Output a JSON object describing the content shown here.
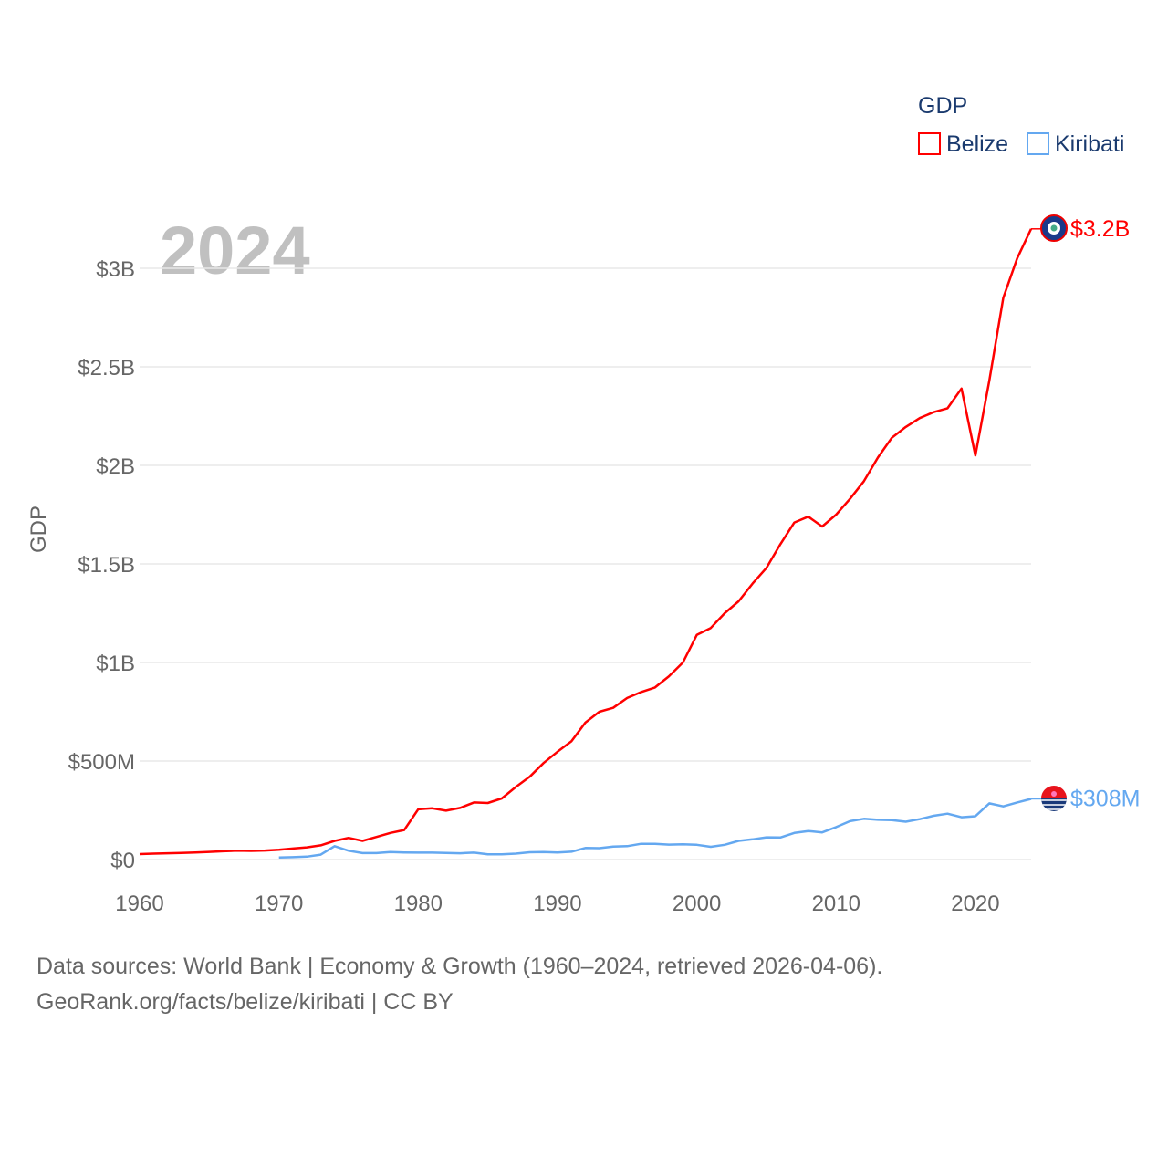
{
  "chart_data": {
    "type": "line",
    "title": "",
    "year_label": "2024",
    "xlabel": "",
    "ylabel": "GDP",
    "legend": {
      "title": "GDP",
      "placement": "top-right"
    },
    "xlim": [
      1960,
      2024
    ],
    "ylim": [
      0,
      3300
    ],
    "x_ticks": [
      1960,
      1970,
      1980,
      1990,
      2000,
      2010,
      2020
    ],
    "y_ticks": [
      {
        "value": 0,
        "label": "$0"
      },
      {
        "value": 500,
        "label": "$500M"
      },
      {
        "value": 1000,
        "label": "$1B"
      },
      {
        "value": 1500,
        "label": "$1.5B"
      },
      {
        "value": 2000,
        "label": "$2B"
      },
      {
        "value": 2500,
        "label": "$2.5B"
      },
      {
        "value": 3000,
        "label": "$3B"
      }
    ],
    "units": "USD millions",
    "grid": true,
    "series": [
      {
        "name": "Belize",
        "color": "#ff0000",
        "start_year": 1960,
        "end_label": "$3.2B",
        "values": [
          28,
          30,
          32,
          34,
          36,
          39,
          42,
          45,
          44,
          46,
          50,
          56,
          62,
          72,
          95,
          110,
          95,
          115,
          135,
          150,
          255,
          260,
          248,
          262,
          290,
          287,
          310,
          368,
          420,
          490,
          547,
          600,
          695,
          750,
          770,
          820,
          850,
          873,
          930,
          1000,
          1140,
          1175,
          1250,
          1310,
          1400,
          1480,
          1600,
          1710,
          1740,
          1690,
          1750,
          1830,
          1920,
          2040,
          2140,
          2195,
          2240,
          2270,
          2290,
          2390,
          2050,
          2430,
          2850,
          3050,
          3200
        ]
      },
      {
        "name": "Kiribati",
        "color": "#64a8f0",
        "start_year": 1970,
        "end_label": "$308M",
        "values": [
          10,
          12,
          15,
          25,
          68,
          45,
          33,
          33,
          38,
          36,
          35,
          35,
          34,
          32,
          35,
          27,
          27,
          30,
          37,
          38,
          36,
          40,
          59,
          58,
          66,
          68,
          80,
          80,
          76,
          78,
          75,
          65,
          75,
          95,
          103,
          113,
          112,
          135,
          145,
          138,
          165,
          195,
          207,
          202,
          200,
          192,
          205,
          222,
          233,
          215,
          220,
          285,
          270,
          290,
          308
        ]
      }
    ]
  },
  "footer": {
    "line1": "Data sources: World Bank | Economy & Growth (1960–2024, retrieved 2026-04-06).",
    "line2": "GeoRank.org/facts/belize/kiribati | CC BY"
  }
}
